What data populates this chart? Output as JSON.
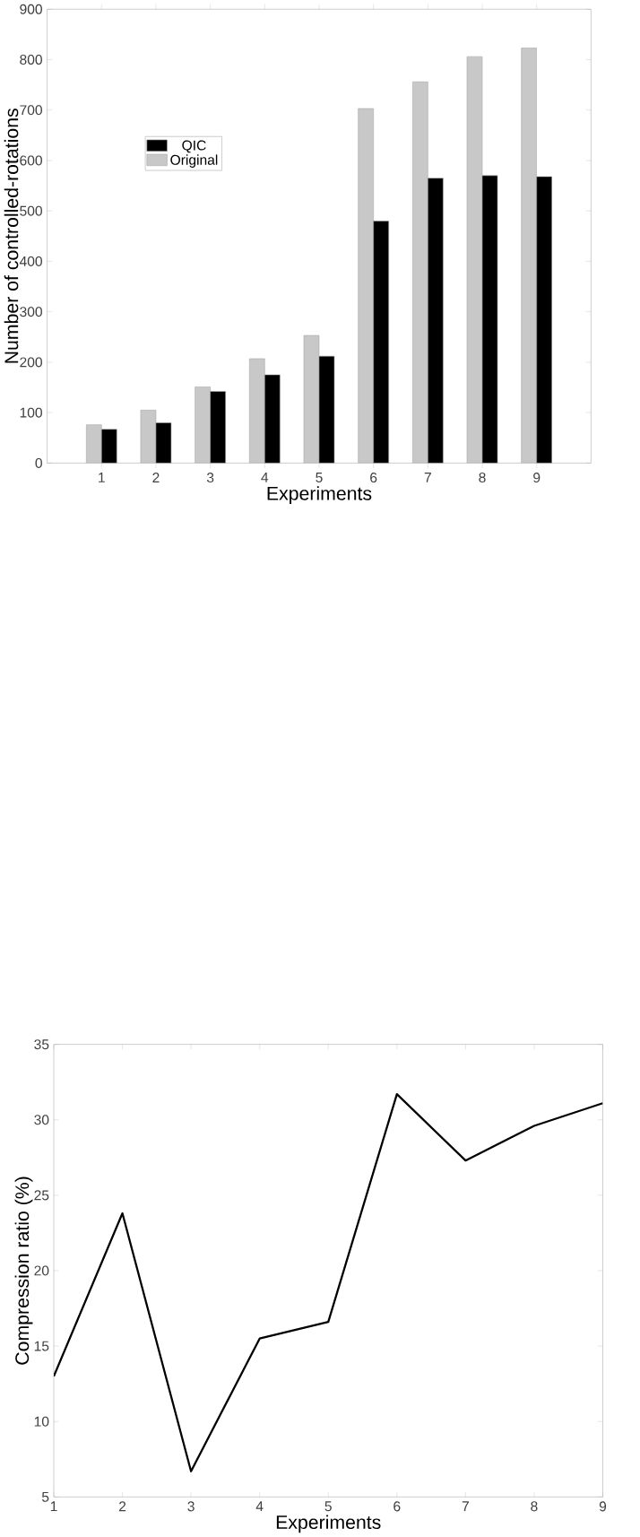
{
  "chart_data": [
    {
      "type": "bar",
      "xlabel": "Experiments",
      "ylabel": "Number of controlled-rotations",
      "categories": [
        "1",
        "2",
        "3",
        "4",
        "5",
        "6",
        "7",
        "8",
        "9"
      ],
      "series": [
        {
          "name": "Original",
          "color": "#c8c8c8",
          "values": [
            76,
            105,
            151,
            207,
            253,
            703,
            756,
            806,
            823
          ]
        },
        {
          "name": "QIC",
          "color": "#000000",
          "values": [
            67,
            80,
            142,
            175,
            212,
            480,
            565,
            570,
            568
          ]
        }
      ],
      "ylim": [
        0,
        900
      ],
      "yticks": [
        0,
        100,
        200,
        300,
        400,
        500,
        600,
        700,
        800,
        900
      ],
      "legend": "top left"
    },
    {
      "type": "line",
      "xlabel": "Experiments",
      "ylabel": "Compression ratio (%)",
      "x": [
        1,
        2,
        3,
        4,
        5,
        6,
        7,
        8,
        9
      ],
      "series": [
        {
          "color": "#000000",
          "values": [
            13.0,
            23.8,
            6.7,
            15.5,
            16.6,
            31.7,
            27.3,
            29.6,
            31.1
          ]
        }
      ],
      "xlim": [
        1,
        9
      ],
      "xticks": [
        1,
        2,
        3,
        4,
        5,
        6,
        7,
        8,
        9
      ],
      "ylim": [
        5,
        35
      ],
      "yticks": [
        5,
        10,
        15,
        20,
        25,
        30,
        35
      ],
      "marker": "none",
      "line_style": "solid"
    }
  ]
}
